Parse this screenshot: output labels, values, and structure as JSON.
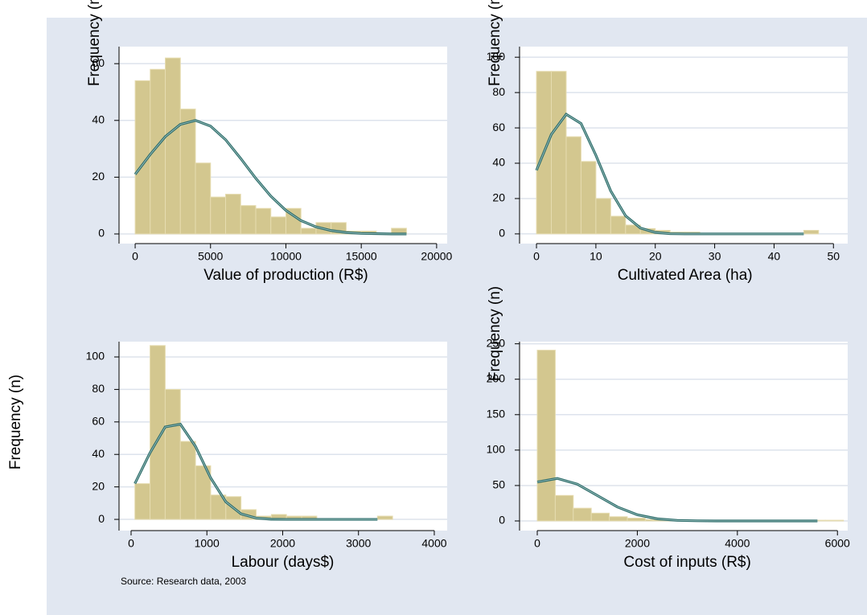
{
  "chart_data": [
    {
      "type": "histogram",
      "xlabel": "Value of production (R$)",
      "ylabel": "Frequency (n)",
      "bins": [
        0,
        1000,
        2000,
        3000,
        4000,
        5000,
        6000,
        7000,
        8000,
        9000,
        10000,
        11000,
        12000,
        13000,
        14000,
        15000,
        16000,
        17000,
        18000
      ],
      "counts": [
        54,
        58,
        62,
        44,
        25,
        13,
        14,
        10,
        9,
        6,
        9,
        2,
        4,
        4,
        1,
        1,
        0,
        2
      ],
      "color": "#d3c78f",
      "curve": {
        "x": [
          0,
          1000,
          2000,
          3000,
          4000,
          5000,
          6000,
          7000,
          8000,
          9000,
          10000,
          11000,
          12000,
          13000,
          14000,
          15000,
          16000,
          17000,
          18000
        ],
        "values": [
          21,
          28,
          34.3,
          38.6,
          40,
          38,
          33.2,
          26.6,
          19.6,
          13.3,
          8.3,
          4.7,
          2.5,
          1.2,
          0.5,
          0.2,
          0.1,
          0,
          0
        ],
        "color": "#2f6e6c"
      },
      "xlim": [
        -1070,
        20700
      ],
      "ylim": [
        -3.4,
        66
      ],
      "xticks": [
        0,
        5000,
        10000,
        15000,
        20000
      ],
      "yticks": [
        0,
        20,
        40,
        60
      ],
      "grid": true
    },
    {
      "type": "histogram",
      "xlabel": "Cultivated Area (ha)",
      "ylabel": "Frequency (n)",
      "bins": [
        0,
        2.5,
        5,
        7.5,
        10,
        12.5,
        15,
        17.5,
        20,
        22.5,
        25,
        27.5,
        30,
        32.5,
        35,
        37.5,
        40,
        42.5,
        45,
        47.5
      ],
      "counts": [
        92,
        92,
        55,
        41,
        20,
        10,
        5,
        3,
        2,
        1,
        1,
        0,
        0,
        0,
        0,
        0,
        0,
        0,
        2
      ],
      "color": "#d3c78f",
      "curve": {
        "x": [
          0,
          2.5,
          5,
          7.5,
          10,
          12.5,
          15,
          17.5,
          20,
          22.5,
          25,
          27.5,
          30,
          32.5,
          35,
          37.5,
          40,
          42.5,
          45
        ],
        "values": [
          36,
          56.3,
          67.7,
          62.5,
          44.5,
          24.3,
          10.2,
          3.3,
          0.8,
          0.1,
          0,
          0,
          0,
          0,
          0,
          0,
          0,
          0,
          0
        ],
        "color": "#2f6e6c"
      },
      "xlim": [
        -2.85,
        52.4
      ],
      "ylim": [
        -5.5,
        106
      ],
      "xticks": [
        0,
        10,
        20,
        30,
        40,
        50
      ],
      "yticks": [
        0,
        20,
        40,
        60,
        80,
        100
      ],
      "grid": true
    },
    {
      "type": "histogram",
      "xlabel": "Labour (days$)",
      "ylabel": "Frequency (n)",
      "bins": [
        50,
        250,
        450,
        650,
        850,
        1050,
        1250,
        1450,
        1650,
        1850,
        2050,
        2250,
        2450,
        2650,
        2850,
        3050,
        3250,
        3450
      ],
      "counts": [
        22,
        107,
        80,
        48,
        33,
        15,
        14,
        6,
        2,
        3,
        2,
        2,
        0,
        0,
        0,
        0,
        2
      ],
      "color": "#d3c78f",
      "curve": {
        "x": [
          50,
          250,
          450,
          650,
          850,
          1050,
          1250,
          1450,
          1650,
          1850,
          2050,
          2250,
          2450,
          2650,
          2850,
          3050,
          3250
        ],
        "values": [
          22,
          41,
          56.9,
          58.6,
          44.9,
          25.5,
          10.8,
          3.4,
          0.8,
          0.1,
          0,
          0,
          0,
          0,
          0,
          0,
          0
        ],
        "color": "#2f6e6c"
      },
      "xlim": [
        -159,
        4170
      ],
      "ylim": [
        -6.9,
        109.4
      ],
      "xticks": [
        0,
        1000,
        2000,
        3000,
        4000
      ],
      "yticks": [
        0,
        20,
        40,
        60,
        80,
        100
      ],
      "grid": true
    },
    {
      "type": "histogram",
      "xlabel": "Cost of inputs (R$)",
      "ylabel": "Frequency (n)",
      "bins": [
        0,
        360,
        720,
        1080,
        1440,
        1800,
        2160,
        2520,
        2880,
        3240,
        3600,
        3960,
        4320,
        4680,
        5040,
        5400,
        5760,
        6120
      ],
      "counts": [
        241,
        36,
        18,
        11,
        6,
        4,
        2,
        1,
        1,
        1,
        1,
        1,
        1,
        1,
        1,
        1,
        1
      ],
      "color": "#d3c78f",
      "curve": {
        "x": [
          0,
          400,
          800,
          1200,
          1600,
          2000,
          2400,
          2800,
          3200,
          3600,
          4000,
          4400,
          4800,
          5200,
          5600
        ],
        "values": [
          55,
          60,
          52,
          35.9,
          19.8,
          8.7,
          3,
          0.8,
          0.2,
          0,
          0,
          0,
          0,
          0,
          0
        ],
        "color": "#2f6e6c"
      },
      "xlim": [
        -354,
        6205
      ],
      "ylim": [
        -13.6,
        253
      ],
      "xticks": [
        0,
        2000,
        4000,
        6000
      ],
      "yticks": [
        0,
        50,
        100,
        150,
        200,
        250
      ],
      "grid": true
    }
  ],
  "source": "Source: Research data, 2003"
}
